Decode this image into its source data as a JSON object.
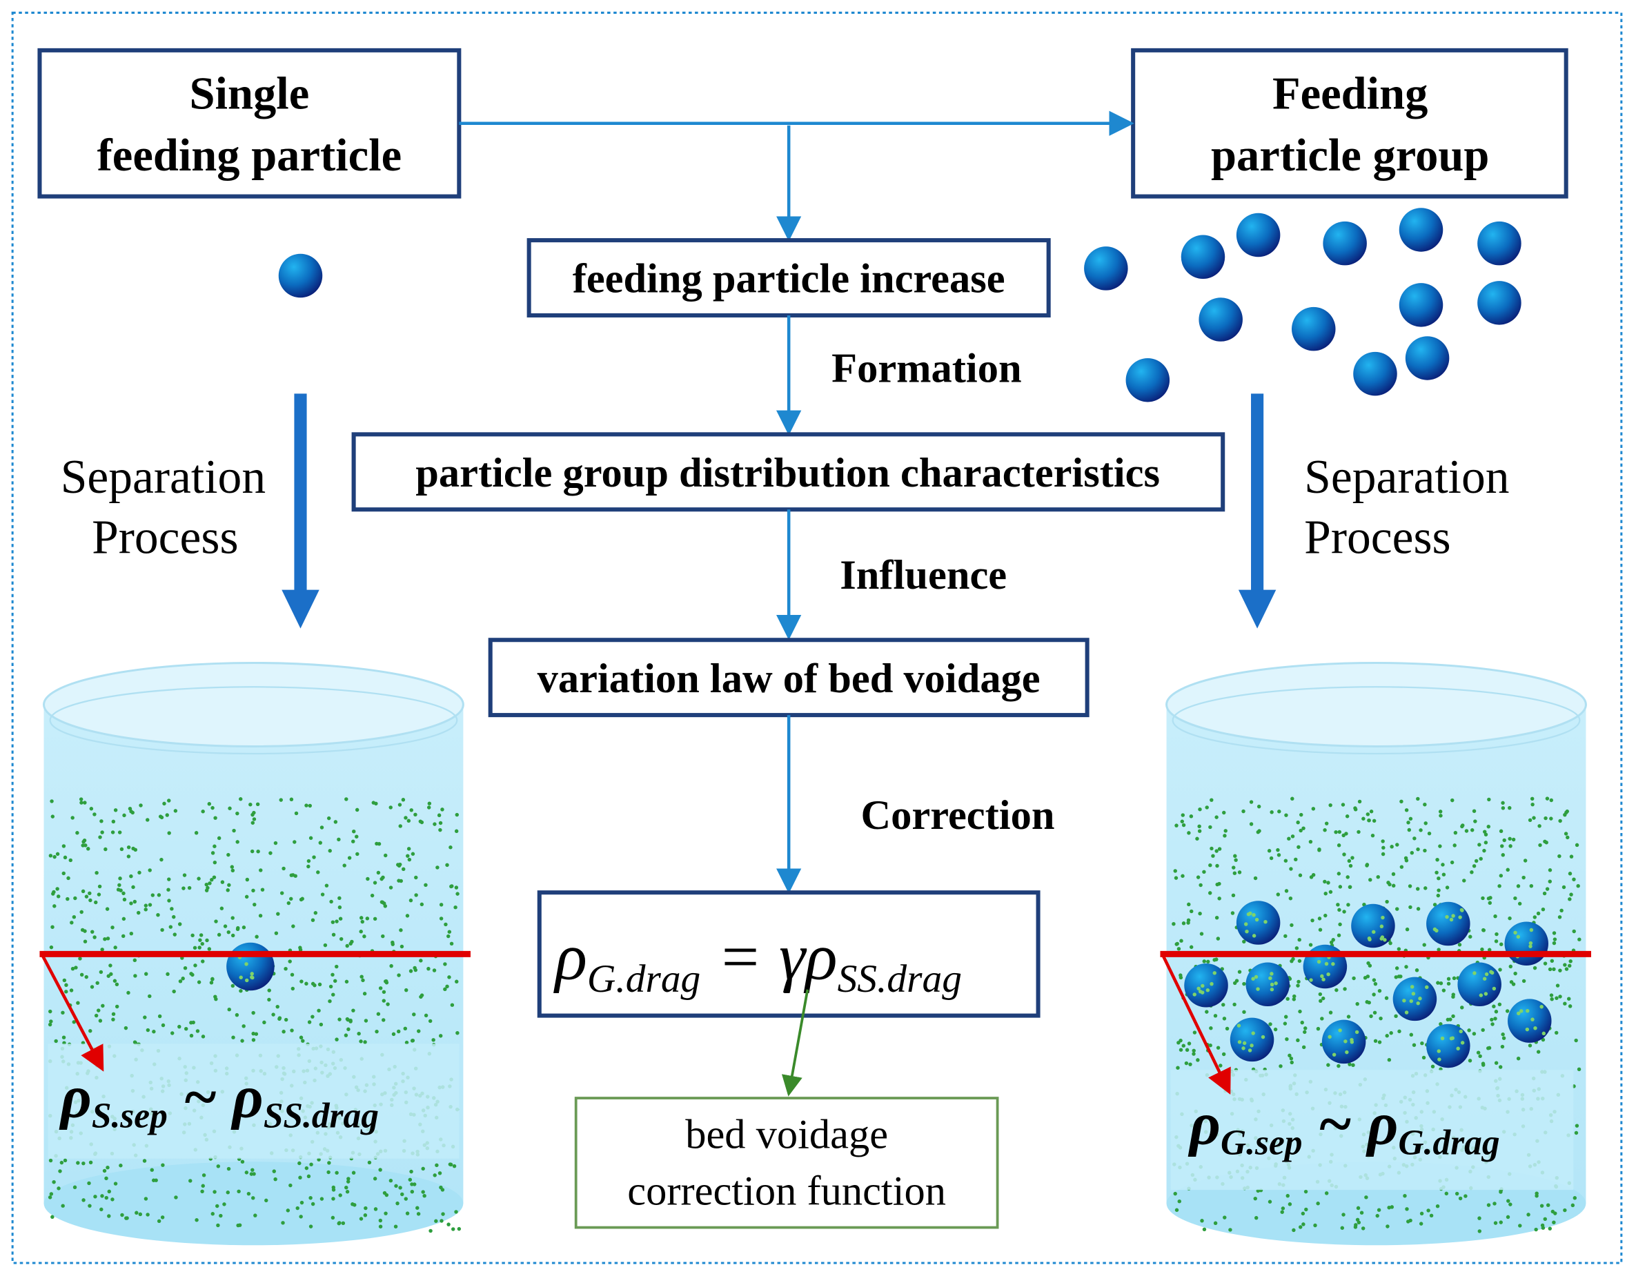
{
  "boxes": {
    "single": [
      "Single",
      "feeding particle"
    ],
    "group": [
      "Feeding",
      "particle group"
    ],
    "increase": "feeding particle increase",
    "distribution": "particle group distribution characteristics",
    "voidage": "variation law of bed voidage",
    "correction_function": [
      "bed voidage",
      "correction function"
    ]
  },
  "labels": {
    "formation": "Formation",
    "influence": "Influence",
    "correction": "Correction",
    "separation_left": [
      "Separation",
      "Process"
    ],
    "separation_right": [
      "Separation",
      "Process"
    ]
  },
  "formulas": {
    "main": {
      "lhs": "ρ",
      "lhs_sub": "G.drag",
      "eq": " = γρ",
      "rhs_sub": "SS.drag"
    },
    "left": {
      "a": "ρ",
      "a_sub": "S.sep",
      "tilde": " ~ ",
      "b": "ρ",
      "b_sub": "SS.drag"
    },
    "right": {
      "a": "ρ",
      "a_sub": "G.sep",
      "tilde": " ~ ",
      "b": "ρ",
      "b_sub": "G.drag"
    }
  },
  "colors": {
    "box_border": "#1f3f7a",
    "arrow": "#1e88d0",
    "big_arrow": "#1b6fc8",
    "green_box": "#6a9a55",
    "red_line": "#e00000",
    "cylinder": "#c2ecfa",
    "dots": "#2e9e3e"
  }
}
